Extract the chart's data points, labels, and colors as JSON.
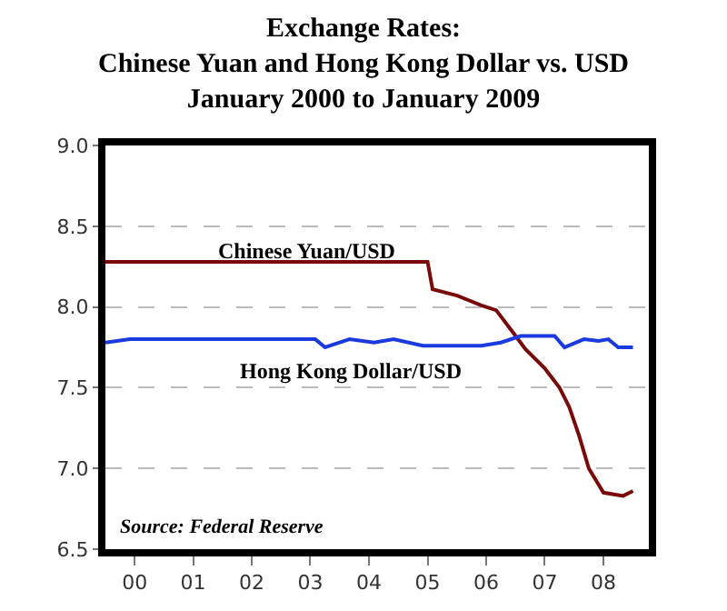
{
  "chart_data": {
    "type": "line",
    "title": "Exchange Rates:\nChinese Yuan and Hong Kong Dollar vs. USD\nJanuary 2000 to January 2009",
    "annotations": [
      "Source: Federal Reserve"
    ],
    "series": [
      {
        "name": "Chinese Yuan/USD",
        "color": "#7a0a0a",
        "x": [
          "2000-01",
          "2005-06",
          "2005-07",
          "2005-08",
          "2006-01",
          "2006-06",
          "2006-09",
          "2007-01",
          "2007-03",
          "2007-07",
          "2007-08",
          "2007-10",
          "2007-12",
          "2008-02",
          "2008-04",
          "2008-07",
          "2008-11",
          "2009-01"
        ],
        "values": [
          8.28,
          8.28,
          8.28,
          8.11,
          8.07,
          8.01,
          7.98,
          7.82,
          7.74,
          7.62,
          7.58,
          7.5,
          7.38,
          7.2,
          7.0,
          6.85,
          6.83,
          6.86
        ]
      },
      {
        "name": "Hong Kong Dollar/USD",
        "color": "#1a3adf",
        "x": [
          "2000-01",
          "2000-06",
          "2003-08",
          "2003-10",
          "2003-12",
          "2004-03",
          "2004-08",
          "2004-12",
          "2005-06",
          "2006-06",
          "2006-10",
          "2007-02",
          "2007-09",
          "2007-11",
          "2008-03",
          "2008-06",
          "2008-08",
          "2008-10",
          "2009-01"
        ],
        "values": [
          7.78,
          7.8,
          7.8,
          7.75,
          7.77,
          7.8,
          7.78,
          7.8,
          7.76,
          7.76,
          7.78,
          7.82,
          7.82,
          7.75,
          7.8,
          7.79,
          7.8,
          7.75,
          7.75
        ]
      }
    ],
    "xlim": [
      "2000-01-01",
      "2009-04-10"
    ],
    "xticks": [
      {
        "value": "2000-07-01",
        "label": "00"
      },
      {
        "value": "2001-07-01",
        "label": "01"
      },
      {
        "value": "2002-07-01",
        "label": "02"
      },
      {
        "value": "2003-07-01",
        "label": "03"
      },
      {
        "value": "2004-07-01",
        "label": "04"
      },
      {
        "value": "2005-07-01",
        "label": "05"
      },
      {
        "value": "2006-07-01",
        "label": "06"
      },
      {
        "value": "2007-07-01",
        "label": "07"
      },
      {
        "value": "2008-07-01",
        "label": "08"
      }
    ],
    "ylim": [
      6.5,
      9.0
    ],
    "yticks": [
      {
        "value": 6.5,
        "label": "6.5"
      },
      {
        "value": 7.0,
        "label": "7.0"
      },
      {
        "value": 7.5,
        "label": "7.5"
      },
      {
        "value": 8.0,
        "label": "8.0"
      },
      {
        "value": 8.5,
        "label": "8.5"
      },
      {
        "value": 9.0,
        "label": "9.0"
      }
    ],
    "grid": "y",
    "legend": false,
    "marker": "none",
    "line_style": "solid"
  }
}
